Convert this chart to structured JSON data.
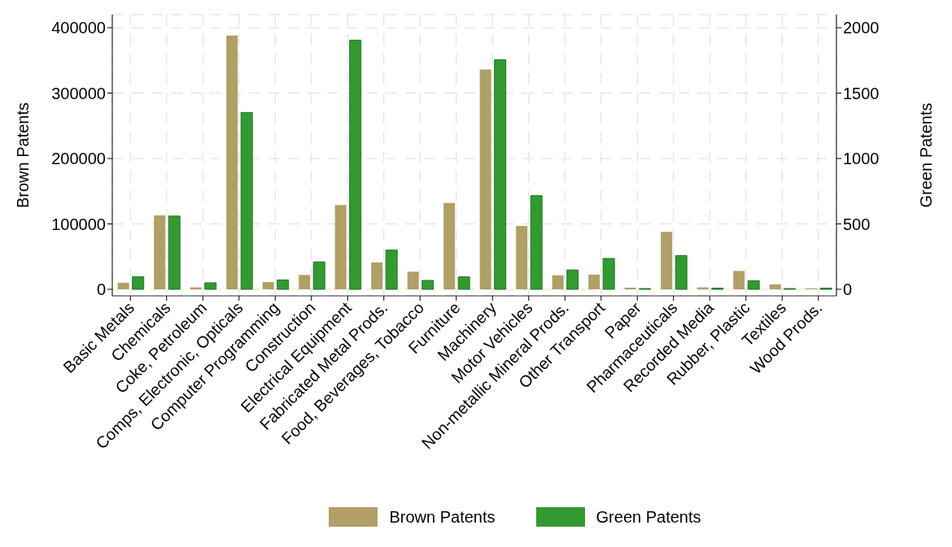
{
  "chart_data": {
    "type": "bar",
    "ylabel": "Brown Patents",
    "y2label": "Green Patents",
    "categories": [
      "Basic Metals",
      "Chemicals",
      "Coke, Petroleum",
      "Comps, Electronic, Opticals",
      "Computer Programming",
      "Construction",
      "Electrical Equipment",
      "Fabricated Metal Prods.",
      "Food, Beverages, Tobacco",
      "Furniture",
      "Machinery",
      "Motor Vehicles",
      "Non-metallic Mineral Prods.",
      "Other Transport",
      "Paper",
      "Pharmaceuticals",
      "Recorded Media",
      "Rubber, Plastic",
      "Textiles",
      "Wood Prods."
    ],
    "series": [
      {
        "name": "Brown Patents",
        "color": "#b09f66",
        "values": [
          10000,
          113000,
          3000,
          388000,
          11000,
          22000,
          129000,
          41000,
          27000,
          132000,
          336000,
          97000,
          21500,
          22500,
          2500,
          88000,
          3000,
          28000,
          7500,
          1500
        ]
      },
      {
        "name": "Green Patents",
        "color": "#339933",
        "axis": "y2",
        "values": [
          97,
          560,
          50,
          1352,
          72,
          210,
          1905,
          300,
          68,
          95,
          1755,
          716,
          148,
          236,
          6,
          258,
          9,
          66,
          6,
          9
        ]
      }
    ],
    "ylim": [
      -10000,
      420000
    ],
    "yticks": [
      0,
      100000,
      200000,
      300000,
      400000
    ],
    "y2lim": [
      -50,
      2100
    ],
    "y2ticks": [
      0,
      500,
      1000,
      1500,
      2000
    ],
    "grid": true,
    "legend": "bottom"
  }
}
